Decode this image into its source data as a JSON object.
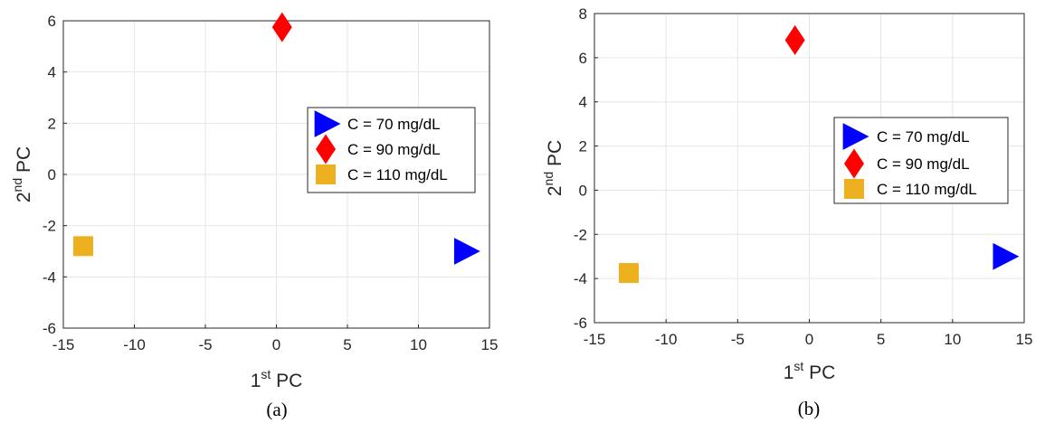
{
  "chart_data": [
    {
      "type": "scatter",
      "caption": "(a)",
      "xlabel": {
        "base": "1",
        "sup": "st",
        "rest": " PC"
      },
      "ylabel": {
        "base": "2",
        "sup": "nd",
        "rest": " PC"
      },
      "xlim": [
        -15,
        15
      ],
      "ylim": [
        -6,
        6
      ],
      "xticks": [
        -15,
        -10,
        -5,
        0,
        5,
        10,
        15
      ],
      "yticks": [
        -6,
        -4,
        -2,
        0,
        2,
        4,
        6
      ],
      "grid": true,
      "legend_position": "right",
      "series": [
        {
          "name": "C = 70 mg/dL",
          "marker": "triangle-right",
          "color": "#0000ff",
          "points": [
            [
              13.3,
              -3.0
            ]
          ]
        },
        {
          "name": "C = 90 mg/dL",
          "marker": "diamond",
          "color": "#ff0000",
          "points": [
            [
              0.4,
              5.75
            ]
          ]
        },
        {
          "name": "C = 110 mg/dL",
          "marker": "square",
          "color": "#edb120",
          "points": [
            [
              -13.6,
              -2.8
            ]
          ]
        }
      ]
    },
    {
      "type": "scatter",
      "caption": "(b)",
      "xlabel": {
        "base": "1",
        "sup": "st",
        "rest": " PC"
      },
      "ylabel": {
        "base": "2",
        "sup": "nd",
        "rest": " PC"
      },
      "xlim": [
        -15,
        15
      ],
      "ylim": [
        -6,
        8
      ],
      "xticks": [
        -15,
        -10,
        -5,
        0,
        5,
        10,
        15
      ],
      "yticks": [
        -6,
        -4,
        -2,
        0,
        2,
        4,
        6,
        8
      ],
      "grid": true,
      "legend_position": "right",
      "series": [
        {
          "name": "C = 70 mg/dL",
          "marker": "triangle-right",
          "color": "#0000ff",
          "points": [
            [
              13.6,
              -3.0
            ]
          ]
        },
        {
          "name": "C = 90 mg/dL",
          "marker": "diamond",
          "color": "#ff0000",
          "points": [
            [
              -1.0,
              6.8
            ]
          ]
        },
        {
          "name": "C = 110 mg/dL",
          "marker": "square",
          "color": "#edb120",
          "points": [
            [
              -12.6,
              -3.75
            ]
          ]
        }
      ]
    }
  ]
}
